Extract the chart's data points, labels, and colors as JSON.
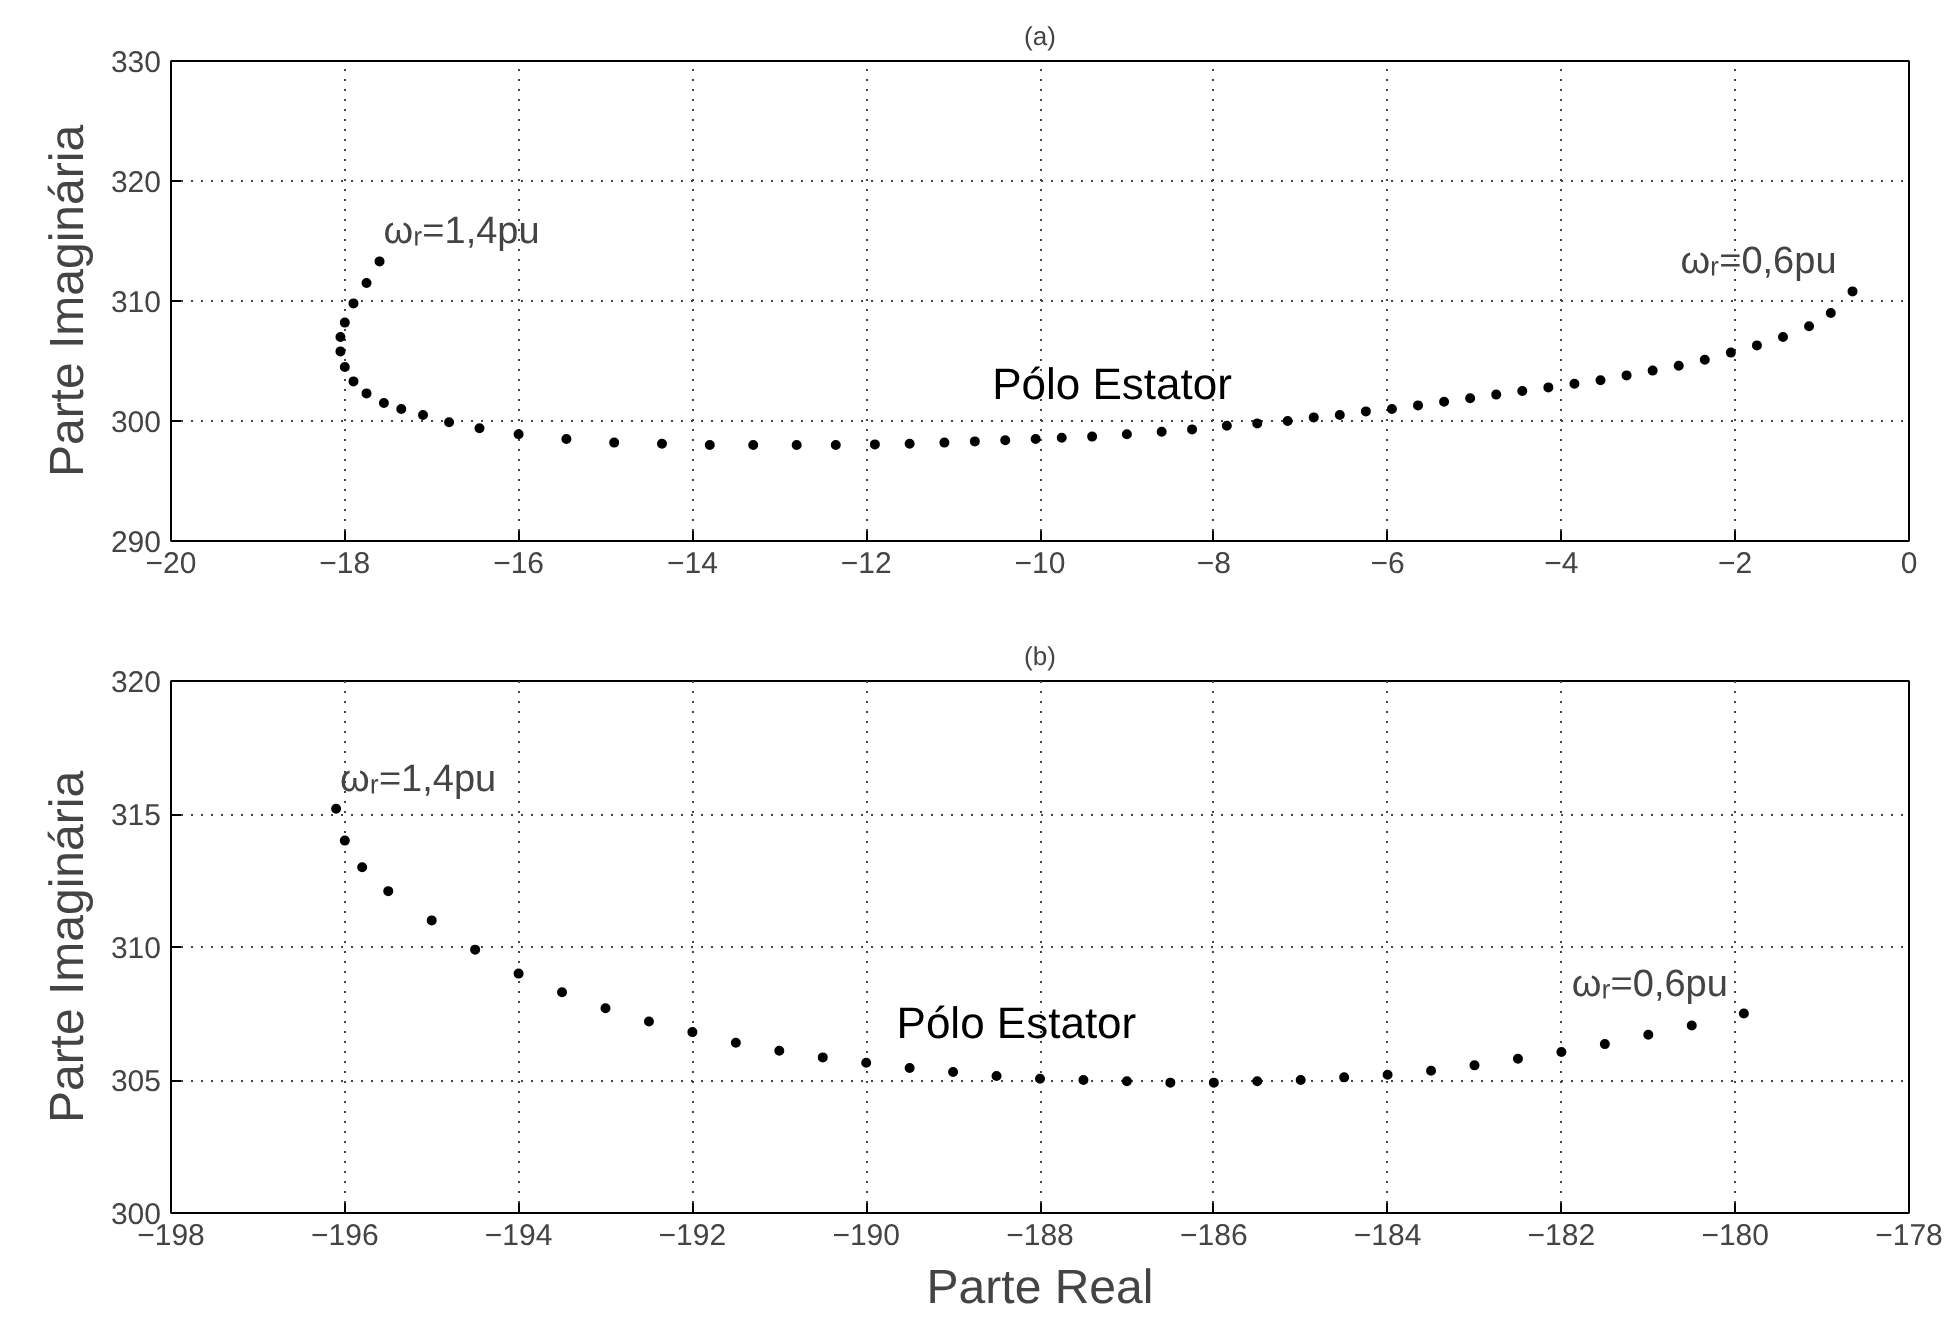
{
  "chart_data": [
    {
      "type": "scatter",
      "title": "(a)",
      "ylabel": "Parte Imaginária",
      "marker": "circle",
      "grid": true,
      "xlim": [
        -20,
        0
      ],
      "xticks": [
        -20,
        -18,
        -16,
        -14,
        -12,
        -10,
        -8,
        -6,
        -4,
        -2,
        0
      ],
      "ylim": [
        290,
        330
      ],
      "yticks": [
        290,
        300,
        310,
        320,
        330
      ],
      "series": [
        {
          "name": "Pólo Estator",
          "color": "#000000",
          "x": [
            -17.6,
            -17.75,
            -17.9,
            -18.0,
            -18.05,
            -18.05,
            -18.0,
            -17.9,
            -17.75,
            -17.55,
            -17.35,
            -17.1,
            -16.8,
            -16.45,
            -16.0,
            -15.45,
            -14.9,
            -14.35,
            -13.8,
            -13.3,
            -12.8,
            -12.35,
            -11.9,
            -11.5,
            -11.1,
            -10.75,
            -10.4,
            -10.05,
            -9.75,
            -9.4,
            -9.0,
            -8.6,
            -8.25,
            -7.85,
            -7.5,
            -7.15,
            -6.85,
            -6.55,
            -6.25,
            -5.95,
            -5.65,
            -5.35,
            -5.05,
            -4.75,
            -4.45,
            -4.15,
            -3.85,
            -3.55,
            -3.25,
            -2.95,
            -2.65,
            -2.35,
            -2.05,
            -1.75,
            -1.45,
            -1.15,
            -0.9,
            -0.65
          ],
          "values": [
            313.3,
            311.5,
            309.8,
            308.2,
            307.0,
            305.8,
            304.5,
            303.3,
            302.3,
            301.5,
            301.0,
            300.5,
            299.9,
            299.4,
            298.9,
            298.5,
            298.2,
            298.1,
            298.0,
            298.0,
            298.0,
            298.0,
            298.05,
            298.1,
            298.2,
            298.3,
            298.4,
            298.5,
            298.6,
            298.7,
            298.9,
            299.1,
            299.3,
            299.6,
            299.8,
            300.0,
            300.3,
            300.5,
            300.8,
            301.0,
            301.3,
            301.6,
            301.9,
            302.2,
            302.5,
            302.8,
            303.1,
            303.4,
            303.8,
            304.2,
            304.6,
            305.1,
            305.7,
            306.3,
            307.0,
            307.9,
            309.0,
            310.8
          ]
        }
      ],
      "annotations": [
        {
          "text": "ωᵣ=1,4pu",
          "x": -17.6,
          "y": 313.3
        },
        {
          "text": "ωᵣ=0,6pu",
          "x": -0.65,
          "y": 310.8
        }
      ]
    },
    {
      "type": "scatter",
      "title": "(b)",
      "xlabel": "Parte Real",
      "ylabel": "Parte Imaginária",
      "marker": "circle",
      "grid": true,
      "xlim": [
        -198,
        -178
      ],
      "xticks": [
        -198,
        -196,
        -194,
        -192,
        -190,
        -188,
        -186,
        -184,
        -182,
        -180,
        -178
      ],
      "ylim": [
        300,
        320
      ],
      "yticks": [
        300,
        305,
        310,
        315,
        320
      ],
      "series": [
        {
          "name": "Pólo Estator",
          "color": "#000000",
          "x": [
            -196.1,
            -196.0,
            -195.8,
            -195.5,
            -195.0,
            -194.5,
            -194.0,
            -193.5,
            -193.0,
            -192.5,
            -192.0,
            -191.5,
            -191.0,
            -190.5,
            -190.0,
            -189.5,
            -189.0,
            -188.5,
            -188.0,
            -187.5,
            -187.0,
            -186.5,
            -186.0,
            -185.5,
            -185.0,
            -184.5,
            -184.0,
            -183.5,
            -183.0,
            -182.5,
            -182.0,
            -181.5,
            -181.0,
            -180.5,
            -179.9
          ],
          "values": [
            315.2,
            314.0,
            313.0,
            312.1,
            311.0,
            309.9,
            309.0,
            308.3,
            307.7,
            307.2,
            306.8,
            306.4,
            306.1,
            305.85,
            305.65,
            305.45,
            305.3,
            305.15,
            305.05,
            305.0,
            304.95,
            304.9,
            304.9,
            304.95,
            305.0,
            305.1,
            305.2,
            305.35,
            305.55,
            305.8,
            306.05,
            306.35,
            306.7,
            307.05,
            307.5
          ]
        }
      ],
      "annotations": [
        {
          "text": "ωᵣ=1,4pu",
          "x": -196.1,
          "y": 315.2
        },
        {
          "text": "ωᵣ=0,6pu",
          "x": -179.9,
          "y": 307.5
        }
      ]
    }
  ]
}
